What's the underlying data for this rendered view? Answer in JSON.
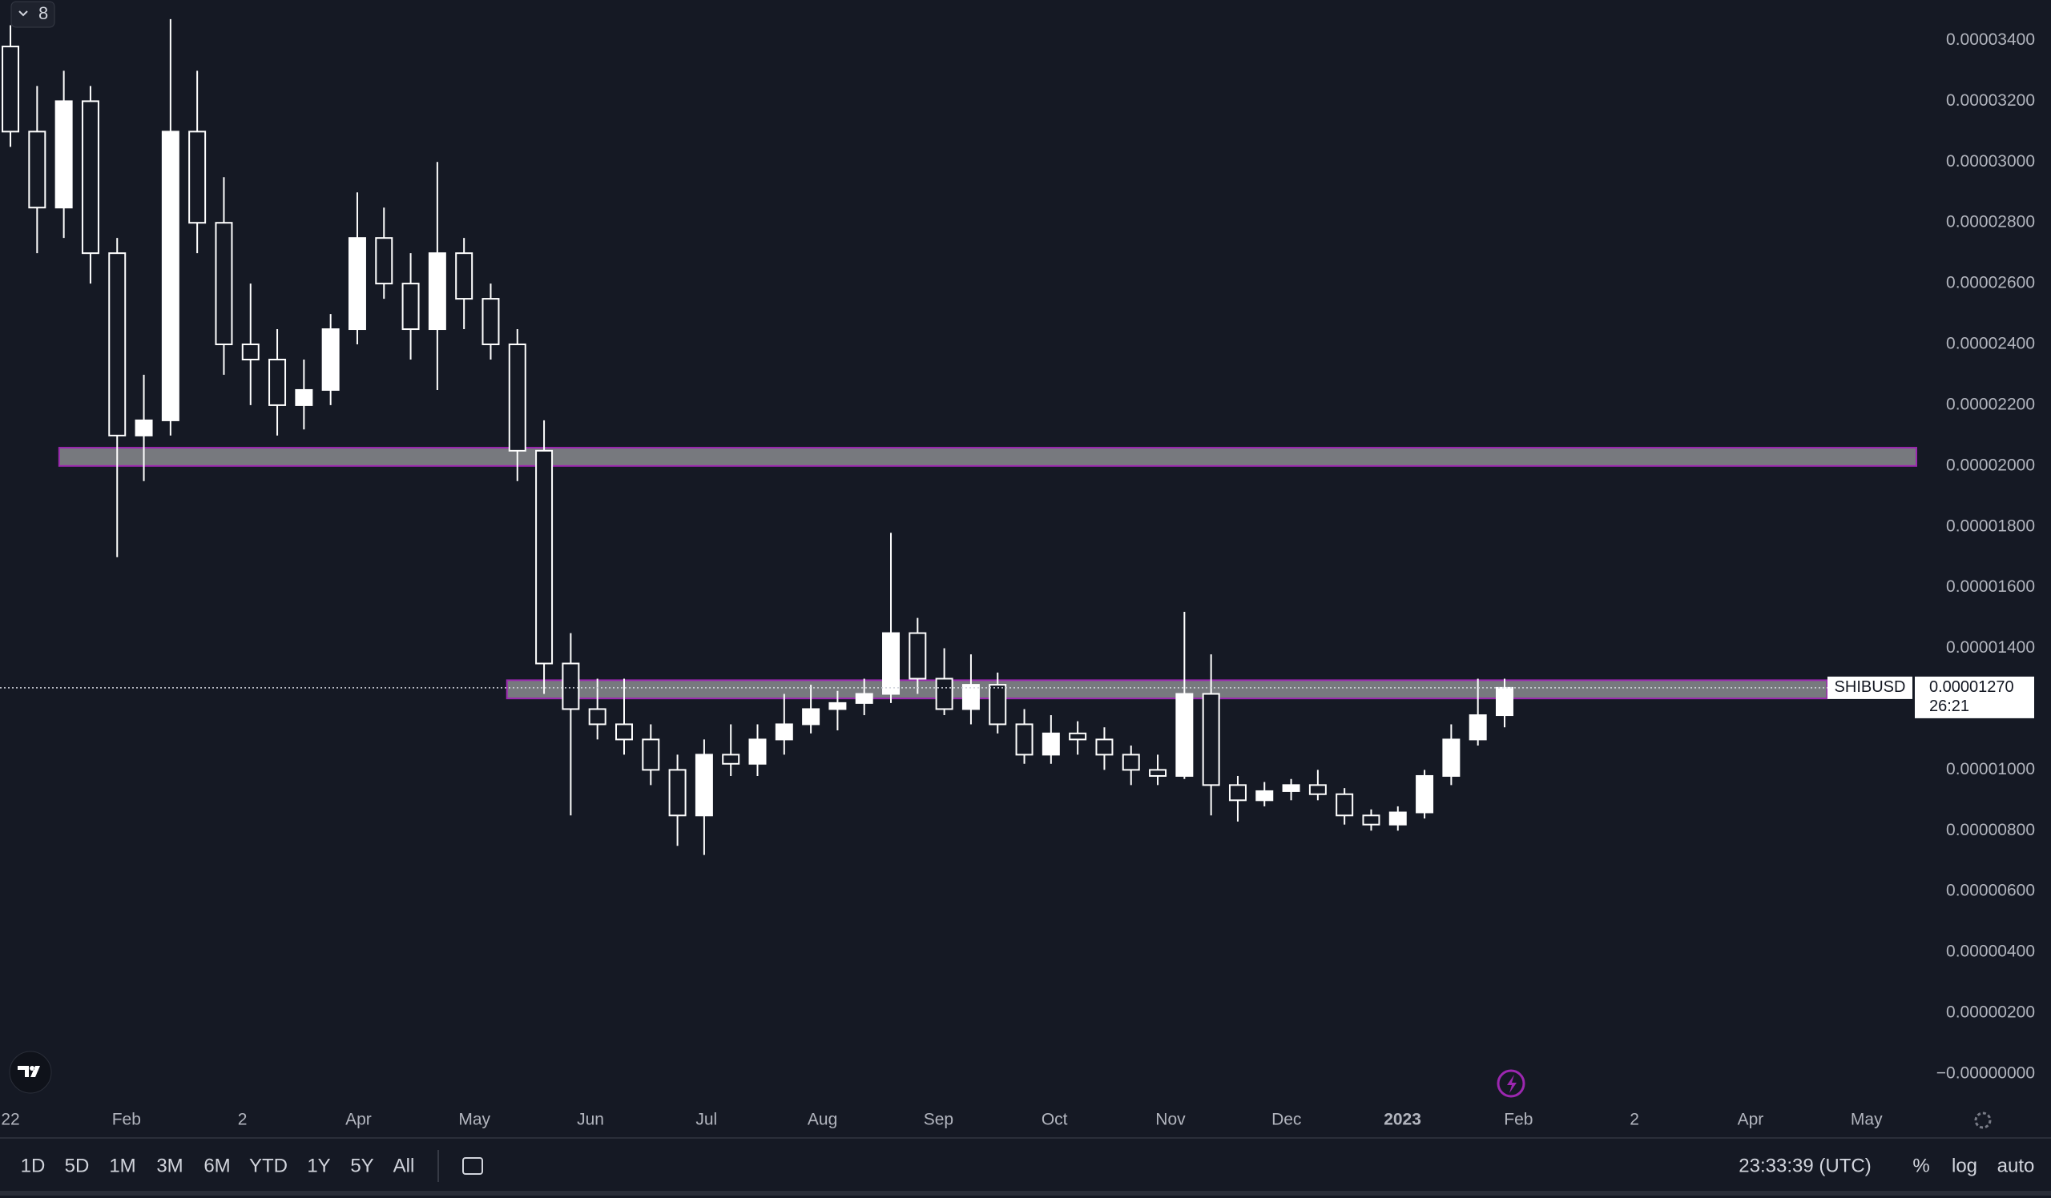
{
  "toolbar": {
    "series_count": "8",
    "ranges": [
      "1D",
      "5D",
      "1M",
      "3M",
      "6M",
      "YTD",
      "1Y",
      "5Y",
      "All"
    ],
    "clock": "23:33:39 (UTC)",
    "options": [
      "%",
      "log",
      "auto"
    ]
  },
  "chart_data": {
    "type": "candlestick",
    "symbol": "SHIBUSD",
    "countdown": "26:21",
    "last_price": {
      "value": 1.27e-05,
      "label": "0.00001270"
    },
    "up_color": "#ffffff",
    "down_color": "#ffffff",
    "x": [
      0,
      0.23,
      0.46,
      0.69,
      0.92,
      1.15,
      1.38,
      1.61,
      1.84,
      2.07,
      2.3,
      2.53,
      2.76,
      2.99,
      3.22,
      3.45,
      3.68,
      3.91,
      4.14,
      4.37,
      4.6,
      4.83,
      5.06,
      5.29,
      5.52,
      5.75,
      5.98,
      6.21,
      6.44,
      6.67,
      6.9,
      7.13,
      7.36,
      7.59,
      7.82,
      8.05,
      8.28,
      8.51,
      8.74,
      8.97,
      9.2,
      9.43,
      9.66,
      9.89,
      10.12,
      10.35,
      10.58,
      10.81,
      11.04,
      11.27,
      11.5,
      11.73,
      11.96,
      12.19,
      12.42,
      12.65,
      12.88
    ],
    "open": [
      3.38e-05,
      3.1e-05,
      2.85e-05,
      3.2e-05,
      2.7e-05,
      2.1e-05,
      2.15e-05,
      3.1e-05,
      2.8e-05,
      2.4e-05,
      2.35e-05,
      2.2e-05,
      2.25e-05,
      2.45e-05,
      2.75e-05,
      2.6e-05,
      2.45e-05,
      2.7e-05,
      2.55e-05,
      2.4e-05,
      2.05e-05,
      1.35e-05,
      1.2e-05,
      1.15e-05,
      1.1e-05,
      1e-05,
      8.5e-06,
      1.05e-05,
      1.02e-05,
      1.1e-05,
      1.15e-05,
      1.2e-05,
      1.22e-05,
      1.25e-05,
      1.45e-05,
      1.3e-05,
      1.2e-05,
      1.28e-05,
      1.15e-05,
      1.05e-05,
      1.12e-05,
      1.1e-05,
      1.05e-05,
      1e-05,
      9.8e-06,
      1.25e-05,
      9.5e-06,
      9e-06,
      9.3e-06,
      9.5e-06,
      9.2e-06,
      8.5e-06,
      8.2e-06,
      8.6e-06,
      9.8e-06,
      1.1e-05,
      1.18e-05
    ],
    "high": [
      3.45e-05,
      3.25e-05,
      3.3e-05,
      3.25e-05,
      2.75e-05,
      2.3e-05,
      3.47e-05,
      3.3e-05,
      2.95e-05,
      2.6e-05,
      2.45e-05,
      2.35e-05,
      2.5e-05,
      2.9e-05,
      2.85e-05,
      2.7e-05,
      3e-05,
      2.75e-05,
      2.6e-05,
      2.45e-05,
      2.15e-05,
      1.45e-05,
      1.3e-05,
      1.3e-05,
      1.15e-05,
      1.05e-05,
      1.1e-05,
      1.15e-05,
      1.15e-05,
      1.25e-05,
      1.28e-05,
      1.26e-05,
      1.3e-05,
      1.78e-05,
      1.5e-05,
      1.4e-05,
      1.38e-05,
      1.32e-05,
      1.2e-05,
      1.18e-05,
      1.16e-05,
      1.14e-05,
      1.08e-05,
      1.05e-05,
      1.52e-05,
      1.38e-05,
      9.8e-06,
      9.6e-06,
      9.7e-06,
      1e-05,
      9.4e-06,
      8.7e-06,
      8.8e-06,
      1e-05,
      1.15e-05,
      1.3e-05,
      1.3e-05
    ],
    "low": [
      3.05e-05,
      2.7e-05,
      2.75e-05,
      2.6e-05,
      1.7e-05,
      1.95e-05,
      2.1e-05,
      2.7e-05,
      2.3e-05,
      2.2e-05,
      2.1e-05,
      2.12e-05,
      2.2e-05,
      2.4e-05,
      2.55e-05,
      2.35e-05,
      2.25e-05,
      2.45e-05,
      2.35e-05,
      1.95e-05,
      1.25e-05,
      8.5e-06,
      1.1e-05,
      1.05e-05,
      9.5e-06,
      7.5e-06,
      7.2e-06,
      9.8e-06,
      9.8e-06,
      1.05e-05,
      1.12e-05,
      1.13e-05,
      1.18e-05,
      1.22e-05,
      1.25e-05,
      1.18e-05,
      1.15e-05,
      1.12e-05,
      1.02e-05,
      1.02e-05,
      1.05e-05,
      1e-05,
      9.5e-06,
      9.5e-06,
      9.7e-06,
      8.5e-06,
      8.3e-06,
      8.8e-06,
      9e-06,
      9e-06,
      8.2e-06,
      8e-06,
      8e-06,
      8.4e-06,
      9.5e-06,
      1.08e-05,
      1.14e-05
    ],
    "close": [
      3.1e-05,
      2.85e-05,
      3.2e-05,
      2.7e-05,
      2.1e-05,
      2.15e-05,
      3.1e-05,
      2.8e-05,
      2.4e-05,
      2.35e-05,
      2.2e-05,
      2.25e-05,
      2.45e-05,
      2.75e-05,
      2.6e-05,
      2.45e-05,
      2.7e-05,
      2.55e-05,
      2.4e-05,
      2.05e-05,
      1.35e-05,
      1.2e-05,
      1.15e-05,
      1.1e-05,
      1e-05,
      8.5e-06,
      1.05e-05,
      1.02e-05,
      1.1e-05,
      1.15e-05,
      1.2e-05,
      1.22e-05,
      1.25e-05,
      1.45e-05,
      1.3e-05,
      1.2e-05,
      1.28e-05,
      1.15e-05,
      1.05e-05,
      1.12e-05,
      1.1e-05,
      1.05e-05,
      1e-05,
      9.8e-06,
      1.25e-05,
      9.5e-06,
      9e-06,
      9.3e-06,
      9.5e-06,
      9.2e-06,
      8.5e-06,
      8.2e-06,
      8.6e-06,
      9.8e-06,
      1.1e-05,
      1.18e-05,
      1.27e-05
    ],
    "zones": [
      {
        "x": [
          0.42,
          16.43
        ],
        "y": [
          2e-05,
          2.06e-05
        ]
      },
      {
        "x": [
          4.28,
          15.66
        ],
        "y": [
          1.235e-05,
          1.295e-05
        ]
      }
    ],
    "xlim": [
      -0.09,
      16.43
    ],
    "xticks": [
      {
        "value": 0,
        "label": "22"
      },
      {
        "value": 1,
        "label": "Feb"
      },
      {
        "value": 2,
        "label": "2"
      },
      {
        "value": 3,
        "label": "Apr"
      },
      {
        "value": 4,
        "label": "May"
      },
      {
        "value": 5,
        "label": "Jun"
      },
      {
        "value": 6,
        "label": "Jul"
      },
      {
        "value": 7,
        "label": "Aug"
      },
      {
        "value": 8,
        "label": "Sep"
      },
      {
        "value": 9,
        "label": "Oct"
      },
      {
        "value": 10,
        "label": "Nov"
      },
      {
        "value": 11,
        "label": "Dec"
      },
      {
        "value": 12,
        "label": "2023"
      },
      {
        "value": 13,
        "label": "Feb"
      },
      {
        "value": 14,
        "label": "2"
      },
      {
        "value": 15,
        "label": "Apr"
      },
      {
        "value": 16,
        "label": "May"
      }
    ],
    "ylim": [
      -1.03e-06,
      3.533e-05
    ],
    "yticks": [
      {
        "value": 3.4e-05,
        "label": "0.00003400"
      },
      {
        "value": 3.2e-05,
        "label": "0.00003200"
      },
      {
        "value": 3e-05,
        "label": "0.00003000"
      },
      {
        "value": 2.8e-05,
        "label": "0.00002800"
      },
      {
        "value": 2.6e-05,
        "label": "0.00002600"
      },
      {
        "value": 2.4e-05,
        "label": "0.00002400"
      },
      {
        "value": 2.2e-05,
        "label": "0.00002200"
      },
      {
        "value": 2e-05,
        "label": "0.00002000"
      },
      {
        "value": 1.8e-05,
        "label": "0.00001800"
      },
      {
        "value": 1.6e-05,
        "label": "0.00001600"
      },
      {
        "value": 1.4e-05,
        "label": "0.00001400"
      },
      {
        "value": 1e-05,
        "label": "0.00001000"
      },
      {
        "value": 8e-06,
        "label": "0.00000800"
      },
      {
        "value": 6e-06,
        "label": "0.00000600"
      },
      {
        "value": 4e-06,
        "label": "0.00000400"
      },
      {
        "value": 2e-06,
        "label": "0.00000200"
      },
      {
        "value": 0,
        "label": "−0.00000000"
      }
    ]
  }
}
